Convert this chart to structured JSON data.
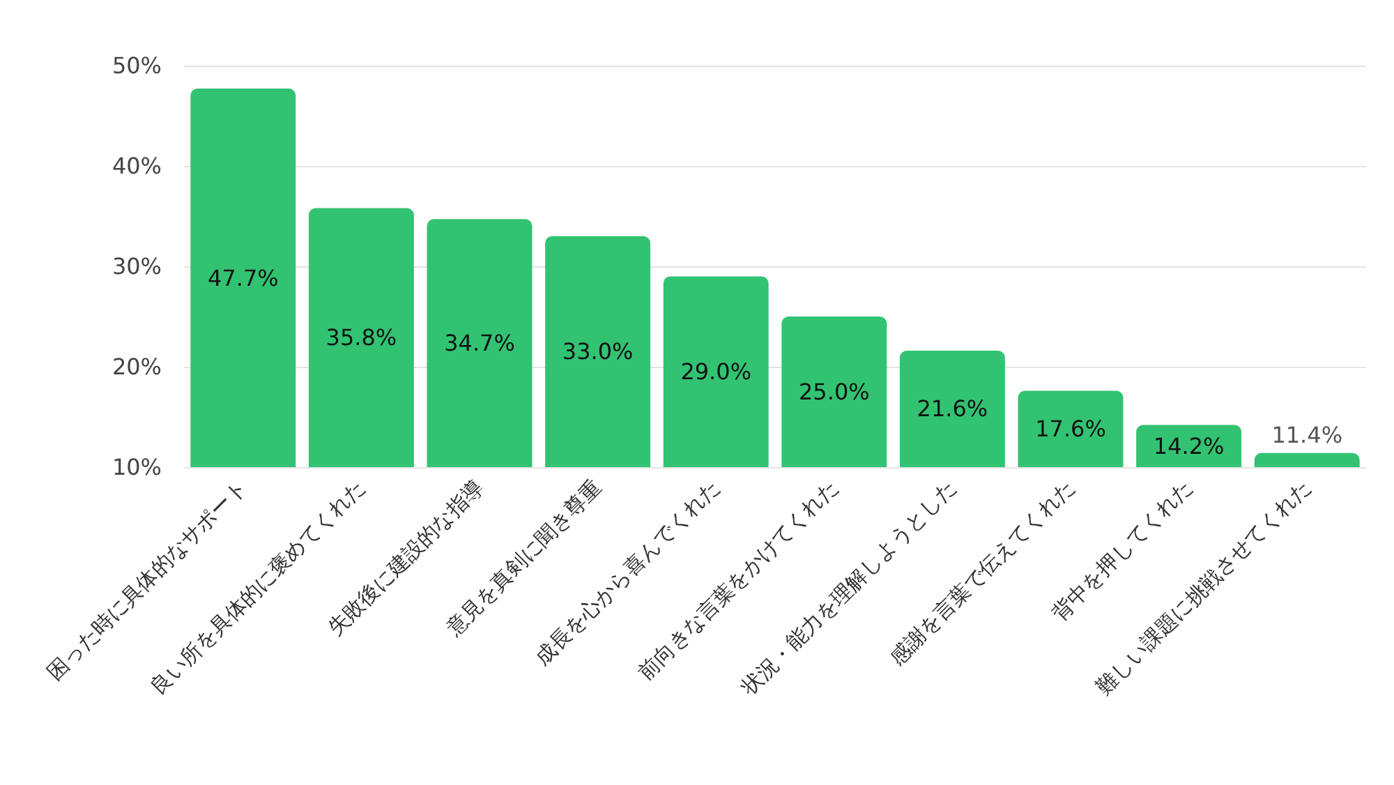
{
  "chart_data": {
    "type": "bar",
    "categories": [
      "困った時に具体的なサポート",
      "良い所を具体的に褒めてくれた",
      "失敗後に建設的な指導",
      "意見を真剣に聞き尊重",
      "成長を心から喜んでくれた",
      "前向きな言葉をかけてくれた",
      "状況・能力を理解しようとした",
      "感謝を言葉で伝えてくれた",
      "背中を押してくれた",
      "難しい課題に挑戦させてくれた"
    ],
    "values": [
      47.7,
      35.8,
      34.7,
      33.0,
      29.0,
      25.0,
      21.6,
      17.6,
      14.2,
      11.4
    ],
    "value_labels": [
      "47.7%",
      "35.8%",
      "34.7%",
      "33.0%",
      "29.0%",
      "25.0%",
      "21.6%",
      "17.6%",
      "14.2%",
      "11.4%"
    ],
    "color": "#32c372",
    "ylim": [
      10,
      50
    ],
    "yticks": [
      {
        "value": 10,
        "label": "10%"
      },
      {
        "value": 20,
        "label": "20%"
      },
      {
        "value": 30,
        "label": "30%"
      },
      {
        "value": 40,
        "label": "40%"
      },
      {
        "value": 50,
        "label": "50%"
      }
    ],
    "grid": "y"
  }
}
